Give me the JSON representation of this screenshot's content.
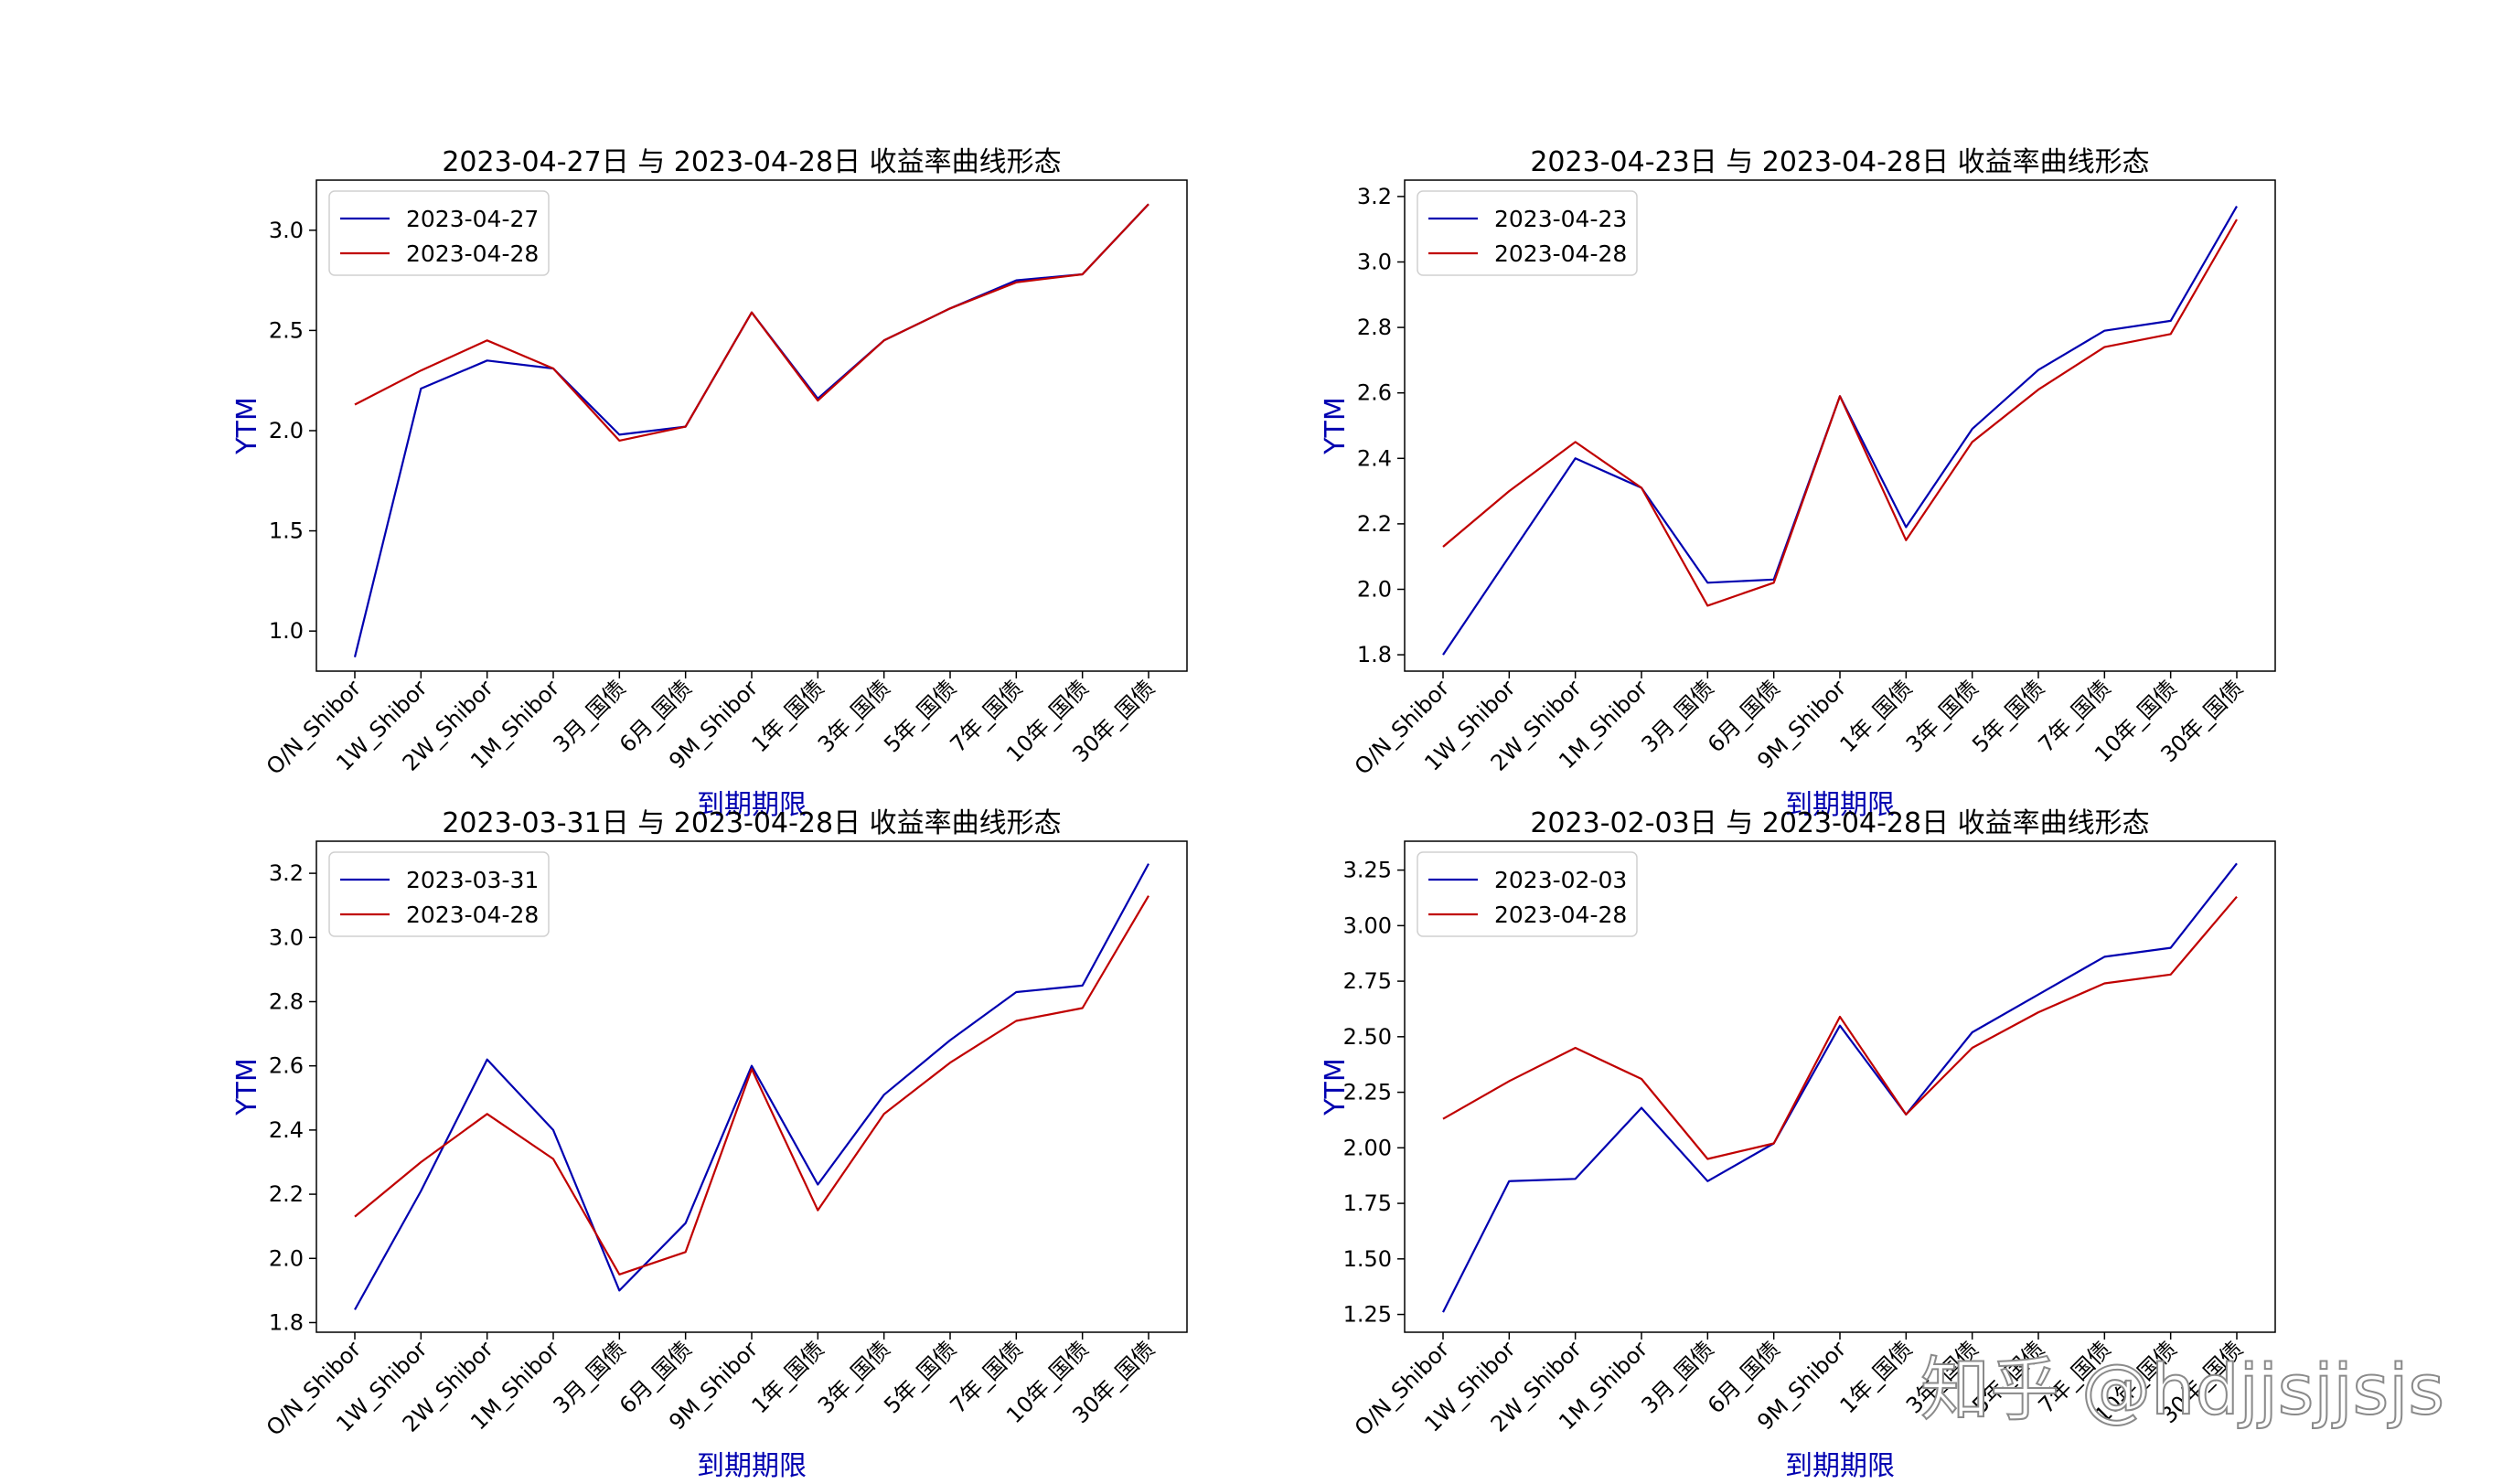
{
  "watermark": "知乎 @hdjjsjjsjs",
  "colors": {
    "compare": "#0000b0",
    "base": "#c00000"
  },
  "chart_data": [
    {
      "type": "line",
      "title": "2023-04-27日 与 2023-04-28日 收益率曲线形态",
      "xlabel": "到期期限",
      "ylabel": "YTM",
      "categories": [
        "O/N_Shibor",
        "1W_Shibor",
        "2W_Shibor",
        "1M_Shibor",
        "3月_国债",
        "6月_国债",
        "9M_Shibor",
        "1年_国债",
        "3年_国债",
        "5年_国债",
        "7年_国债",
        "10年_国债",
        "30年_国债"
      ],
      "ylim": [
        0.8,
        3.25
      ],
      "yticks": [
        1.0,
        1.5,
        2.0,
        2.5,
        3.0
      ],
      "ytick_labels": [
        "1.0",
        "1.5",
        "2.0",
        "2.5",
        "3.0"
      ],
      "legend_position": "upper-left",
      "series": [
        {
          "name": "2023-04-27",
          "color": "#0000b0",
          "values": [
            0.87,
            2.21,
            2.35,
            2.31,
            1.98,
            2.02,
            2.59,
            2.16,
            2.45,
            2.61,
            2.75,
            2.78,
            3.13
          ]
        },
        {
          "name": "2023-04-28",
          "color": "#c00000",
          "values": [
            2.13,
            2.3,
            2.45,
            2.31,
            1.95,
            2.02,
            2.59,
            2.15,
            2.45,
            2.61,
            2.74,
            2.78,
            3.13
          ]
        }
      ]
    },
    {
      "type": "line",
      "title": "2023-04-23日 与 2023-04-28日 收益率曲线形态",
      "xlabel": "到期期限",
      "ylabel": "YTM",
      "categories": [
        "O/N_Shibor",
        "1W_Shibor",
        "2W_Shibor",
        "1M_Shibor",
        "3月_国债",
        "6月_国债",
        "9M_Shibor",
        "1年_国债",
        "3年_国债",
        "5年_国债",
        "7年_国债",
        "10年_国债",
        "30年_国债"
      ],
      "ylim": [
        1.75,
        3.25
      ],
      "yticks": [
        1.8,
        2.0,
        2.2,
        2.4,
        2.6,
        2.8,
        3.0,
        3.2
      ],
      "ytick_labels": [
        "1.8",
        "2.0",
        "2.2",
        "2.4",
        "2.6",
        "2.8",
        "3.0",
        "3.2"
      ],
      "legend_position": "upper-left",
      "series": [
        {
          "name": "2023-04-23",
          "color": "#0000b0",
          "values": [
            1.8,
            2.1,
            2.4,
            2.31,
            2.02,
            2.03,
            2.59,
            2.19,
            2.49,
            2.67,
            2.79,
            2.82,
            3.17
          ]
        },
        {
          "name": "2023-04-28",
          "color": "#c00000",
          "values": [
            2.13,
            2.3,
            2.45,
            2.31,
            1.95,
            2.02,
            2.59,
            2.15,
            2.45,
            2.61,
            2.74,
            2.78,
            3.13
          ]
        }
      ]
    },
    {
      "type": "line",
      "title": "2023-03-31日 与 2023-04-28日 收益率曲线形态",
      "xlabel": "到期期限",
      "ylabel": "YTM",
      "categories": [
        "O/N_Shibor",
        "1W_Shibor",
        "2W_Shibor",
        "1M_Shibor",
        "3月_国债",
        "6月_国债",
        "9M_Shibor",
        "1年_国债",
        "3年_国债",
        "5年_国债",
        "7年_国债",
        "10年_国债",
        "30年_国债"
      ],
      "ylim": [
        1.77,
        3.3
      ],
      "yticks": [
        1.8,
        2.0,
        2.2,
        2.4,
        2.6,
        2.8,
        3.0,
        3.2
      ],
      "ytick_labels": [
        "1.8",
        "2.0",
        "2.2",
        "2.4",
        "2.6",
        "2.8",
        "3.0",
        "3.2"
      ],
      "legend_position": "upper-left",
      "series": [
        {
          "name": "2023-03-31",
          "color": "#0000b0",
          "values": [
            1.84,
            2.21,
            2.62,
            2.4,
            1.9,
            2.11,
            2.6,
            2.23,
            2.51,
            2.68,
            2.83,
            2.85,
            3.23
          ]
        },
        {
          "name": "2023-04-28",
          "color": "#c00000",
          "values": [
            2.13,
            2.3,
            2.45,
            2.31,
            1.95,
            2.02,
            2.59,
            2.15,
            2.45,
            2.61,
            2.74,
            2.78,
            3.13
          ]
        }
      ]
    },
    {
      "type": "line",
      "title": "2023-02-03日 与 2023-04-28日 收益率曲线形态",
      "xlabel": "到期期限",
      "ylabel": "YTM",
      "categories": [
        "O/N_Shibor",
        "1W_Shibor",
        "2W_Shibor",
        "1M_Shibor",
        "3月_国债",
        "6月_国债",
        "9M_Shibor",
        "1年_国债",
        "3年_国债",
        "5年_国债",
        "7年_国债",
        "10年_国债",
        "30年_国债"
      ],
      "ylim": [
        1.17,
        3.38
      ],
      "yticks": [
        1.25,
        1.5,
        1.75,
        2.0,
        2.25,
        2.5,
        2.75,
        3.0,
        3.25
      ],
      "ytick_labels": [
        "1.25",
        "1.50",
        "1.75",
        "2.00",
        "2.25",
        "2.50",
        "2.75",
        "3.00",
        "3.25"
      ],
      "legend_position": "upper-left",
      "series": [
        {
          "name": "2023-02-03",
          "color": "#0000b0",
          "values": [
            1.26,
            1.85,
            1.86,
            2.18,
            1.85,
            2.02,
            2.55,
            2.15,
            2.52,
            2.69,
            2.86,
            2.9,
            3.28
          ]
        },
        {
          "name": "2023-04-28",
          "color": "#c00000",
          "values": [
            2.13,
            2.3,
            2.45,
            2.31,
            1.95,
            2.02,
            2.59,
            2.15,
            2.45,
            2.61,
            2.74,
            2.78,
            3.13
          ]
        }
      ]
    }
  ]
}
